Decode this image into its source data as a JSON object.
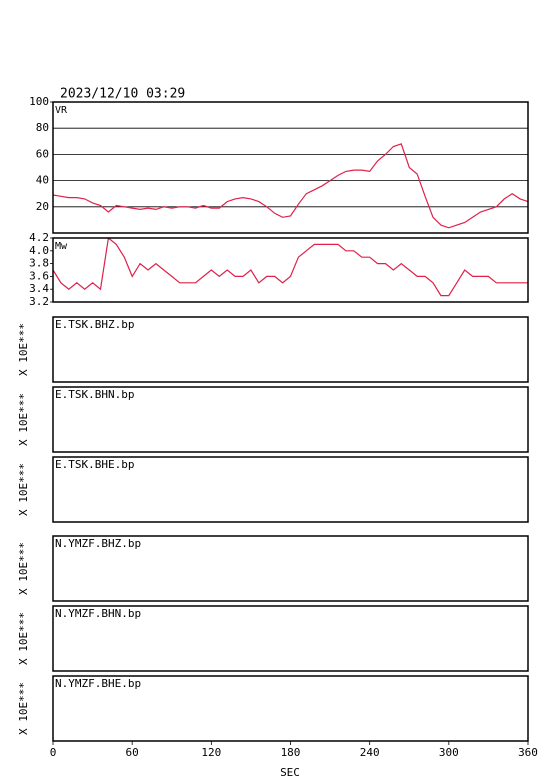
{
  "title": "2023/12/10 03:29",
  "chart_data": [
    {
      "type": "line",
      "label": "VR",
      "color": "#e0204a",
      "grid": true,
      "x": [
        0,
        6,
        12,
        18,
        24,
        30,
        36,
        42,
        48,
        54,
        60,
        66,
        72,
        78,
        84,
        90,
        96,
        102,
        108,
        114,
        120,
        126,
        132,
        138,
        144,
        150,
        156,
        162,
        168,
        174,
        180,
        186,
        192,
        198,
        204,
        210,
        216,
        222,
        228,
        234,
        240,
        246,
        252,
        258,
        264,
        270,
        276,
        282,
        288,
        294,
        300,
        306,
        312,
        318,
        324,
        330,
        336,
        342,
        348,
        354,
        360
      ],
      "values": [
        29,
        28,
        27,
        27,
        26,
        23,
        21,
        16,
        21,
        20,
        19,
        18,
        19,
        18,
        20,
        19,
        20,
        20,
        19,
        21,
        19,
        19,
        24,
        26,
        27,
        26,
        24,
        20,
        15,
        12,
        13,
        22,
        30,
        33,
        36,
        40,
        44,
        47,
        48,
        48,
        47,
        55,
        60,
        66,
        68,
        50,
        45,
        28,
        12,
        6,
        4,
        6,
        8,
        12,
        16,
        18,
        20,
        26,
        30,
        26,
        24
      ],
      "ylim": [
        0,
        100
      ],
      "yticks": [
        20,
        40,
        60,
        80,
        100
      ]
    },
    {
      "type": "line",
      "label": "Mw",
      "color": "#e0204a",
      "grid": false,
      "x": [
        0,
        6,
        12,
        18,
        24,
        30,
        36,
        42,
        48,
        54,
        60,
        66,
        72,
        78,
        84,
        90,
        96,
        102,
        108,
        114,
        120,
        126,
        132,
        138,
        144,
        150,
        156,
        162,
        168,
        174,
        180,
        186,
        192,
        198,
        204,
        210,
        216,
        222,
        228,
        234,
        240,
        246,
        252,
        258,
        264,
        270,
        276,
        282,
        288,
        294,
        300,
        306,
        312,
        318,
        324,
        330,
        336,
        342,
        348,
        354,
        360
      ],
      "values": [
        3.7,
        3.5,
        3.4,
        3.5,
        3.4,
        3.5,
        3.4,
        4.2,
        4.1,
        3.9,
        3.6,
        3.8,
        3.7,
        3.8,
        3.7,
        3.6,
        3.5,
        3.5,
        3.5,
        3.6,
        3.7,
        3.6,
        3.7,
        3.6,
        3.6,
        3.7,
        3.5,
        3.6,
        3.6,
        3.5,
        3.6,
        3.9,
        4.0,
        4.1,
        4.1,
        4.1,
        4.1,
        4.0,
        4.0,
        3.9,
        3.9,
        3.8,
        3.8,
        3.7,
        3.8,
        3.7,
        3.6,
        3.6,
        3.5,
        3.3,
        3.3,
        3.5,
        3.7,
        3.6,
        3.6,
        3.6,
        3.5,
        3.5,
        3.5,
        3.5,
        3.5
      ],
      "ylim": [
        3.2,
        4.2
      ],
      "yticks": [
        3.2,
        3.4,
        3.6,
        3.8,
        {
          "value": 4,
          "label": "4.0"
        },
        4.2
      ]
    }
  ],
  "traces": [
    {
      "name": "E.TSK.BHZ.bp",
      "ylabel": "X 10E***"
    },
    {
      "name": "E.TSK.BHN.bp",
      "ylabel": "X 10E***"
    },
    {
      "name": "E.TSK.BHE.bp",
      "ylabel": "X 10E***"
    },
    {
      "name": "N.YMZF.BHZ.bp",
      "ylabel": "X 10E***"
    },
    {
      "name": "N.YMZF.BHN.bp",
      "ylabel": "X 10E***"
    },
    {
      "name": "N.YMZF.BHE.bp",
      "ylabel": "X 10E***"
    }
  ],
  "x_axis": {
    "label": "SEC",
    "xlim": [
      0,
      360
    ],
    "xticks": [
      0,
      60,
      120,
      180,
      240,
      300,
      360
    ]
  }
}
